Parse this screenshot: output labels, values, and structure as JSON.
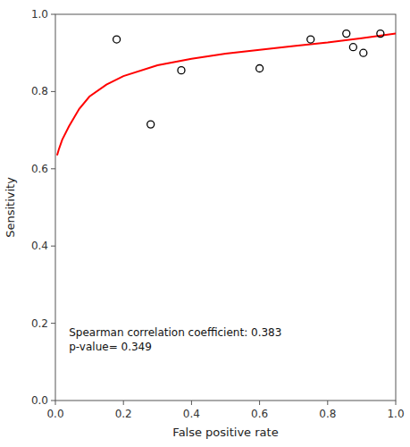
{
  "chart_data": {
    "type": "scatter",
    "xlabel": "False positive rate",
    "ylabel": "Sensitivity",
    "annotations": [
      "Spearman correlation coefficient: 0.383",
      "p-value= 0.349"
    ],
    "xlim": [
      0.0,
      1.0
    ],
    "ylim": [
      0.0,
      1.0
    ],
    "xticks": [
      {
        "value": 0.0,
        "label": "0.0"
      },
      0.2,
      0.4,
      0.6,
      0.8,
      {
        "value": 1.0,
        "label": "1.0"
      }
    ],
    "yticks": [
      {
        "value": 0.0,
        "label": "0.0"
      },
      0.2,
      0.4,
      0.6,
      0.8,
      {
        "value": 1.0,
        "label": "1.0"
      }
    ],
    "grid": false,
    "series": [
      {
        "type": "scatter",
        "color": "black",
        "marker": "circle",
        "x": [
          0.18,
          0.28,
          0.37,
          0.6,
          0.75,
          0.855,
          0.875,
          0.905,
          0.955
        ],
        "values": [
          0.935,
          0.715,
          0.855,
          0.86,
          0.935,
          0.95,
          0.915,
          0.9,
          0.95
        ]
      },
      {
        "type": "line",
        "color": "red",
        "line_style": "solid",
        "x": [
          0.005,
          0.01,
          0.02,
          0.04,
          0.07,
          0.1,
          0.15,
          0.2,
          0.3,
          0.4,
          0.5,
          0.6,
          0.7,
          0.8,
          0.9,
          1.0
        ],
        "values": [
          0.635,
          0.65,
          0.675,
          0.71,
          0.755,
          0.787,
          0.818,
          0.84,
          0.868,
          0.885,
          0.898,
          0.908,
          0.918,
          0.927,
          0.938,
          0.95
        ]
      }
    ]
  }
}
